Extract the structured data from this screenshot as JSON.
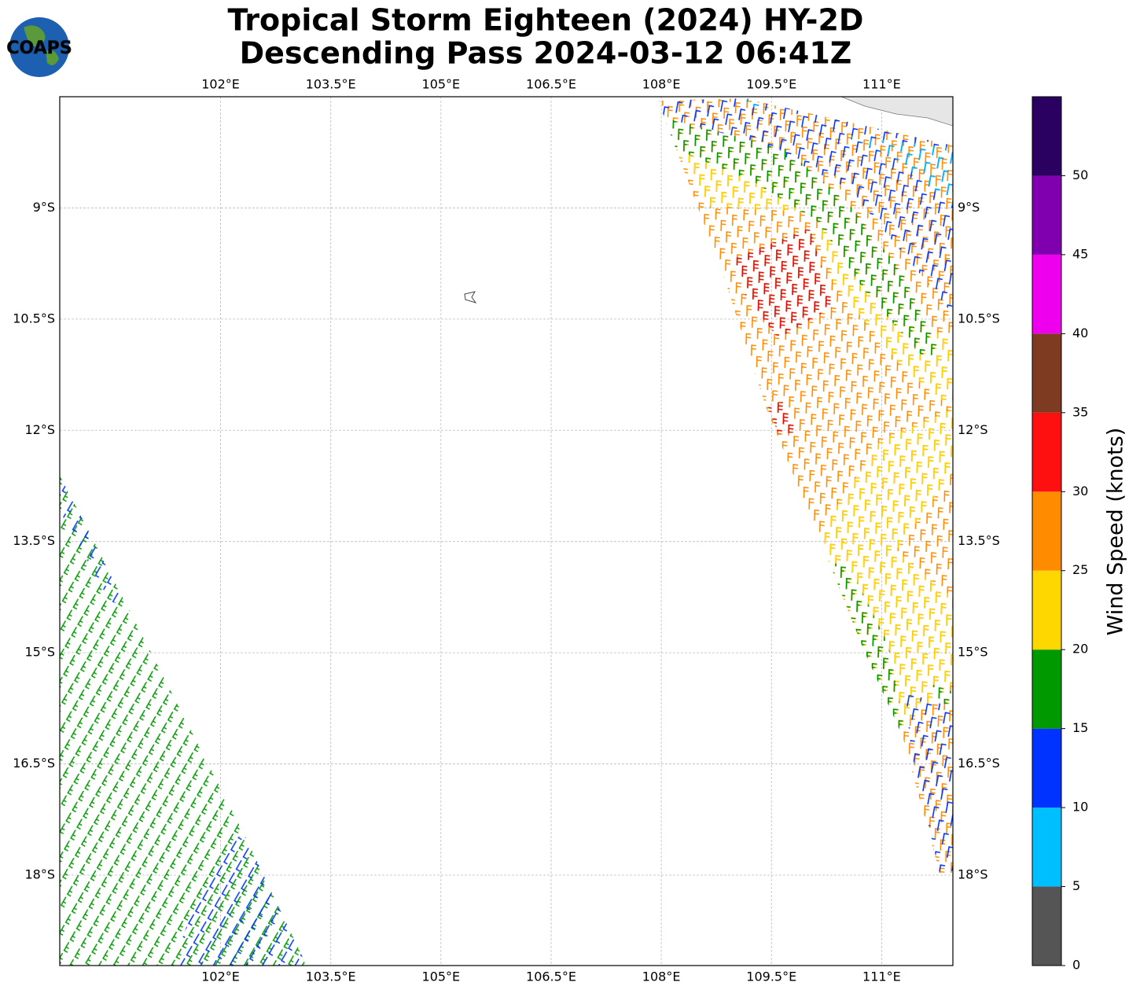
{
  "header": {
    "title_line1": "Tropical Storm Eighteen (2024) HY-2D",
    "title_line2": "Descending Pass 2024-03-12 06:41Z",
    "logo": "COAPS"
  },
  "map": {
    "xlim": [
      99.81,
      111.97
    ],
    "ylim": [
      -19.22,
      -7.5
    ],
    "xticks": [
      {
        "value": 102,
        "label": "102°E"
      },
      {
        "value": 103.5,
        "label": "103.5°E"
      },
      {
        "value": 105,
        "label": "105°E"
      },
      {
        "value": 106.5,
        "label": "106.5°E"
      },
      {
        "value": 108,
        "label": "108°E"
      },
      {
        "value": 109.5,
        "label": "109.5°E"
      },
      {
        "value": 111,
        "label": "111°E"
      }
    ],
    "yticks": [
      {
        "value": -9,
        "label": "9°S"
      },
      {
        "value": -10.5,
        "label": "10.5°S"
      },
      {
        "value": -12,
        "label": "12°S"
      },
      {
        "value": -13.5,
        "label": "13.5°S"
      },
      {
        "value": -15,
        "label": "15°S"
      },
      {
        "value": -16.5,
        "label": "16.5°S"
      },
      {
        "value": -18,
        "label": "18°S"
      }
    ],
    "grid": true
  },
  "colorbar": {
    "label": "Wind Speed (knots)",
    "bounds": [
      0,
      5,
      10,
      15,
      20,
      25,
      30,
      35,
      40,
      45,
      50,
      55
    ],
    "colors": [
      "#555555",
      "#00bfff",
      "#0033ff",
      "#009900",
      "#ffd700",
      "#ff8c00",
      "#ff1010",
      "#7f3b22",
      "#ee00ee",
      "#8000b0",
      "#2a0060"
    ],
    "ticks": [
      0,
      5,
      10,
      15,
      20,
      25,
      30,
      35,
      40,
      45,
      50
    ]
  }
}
